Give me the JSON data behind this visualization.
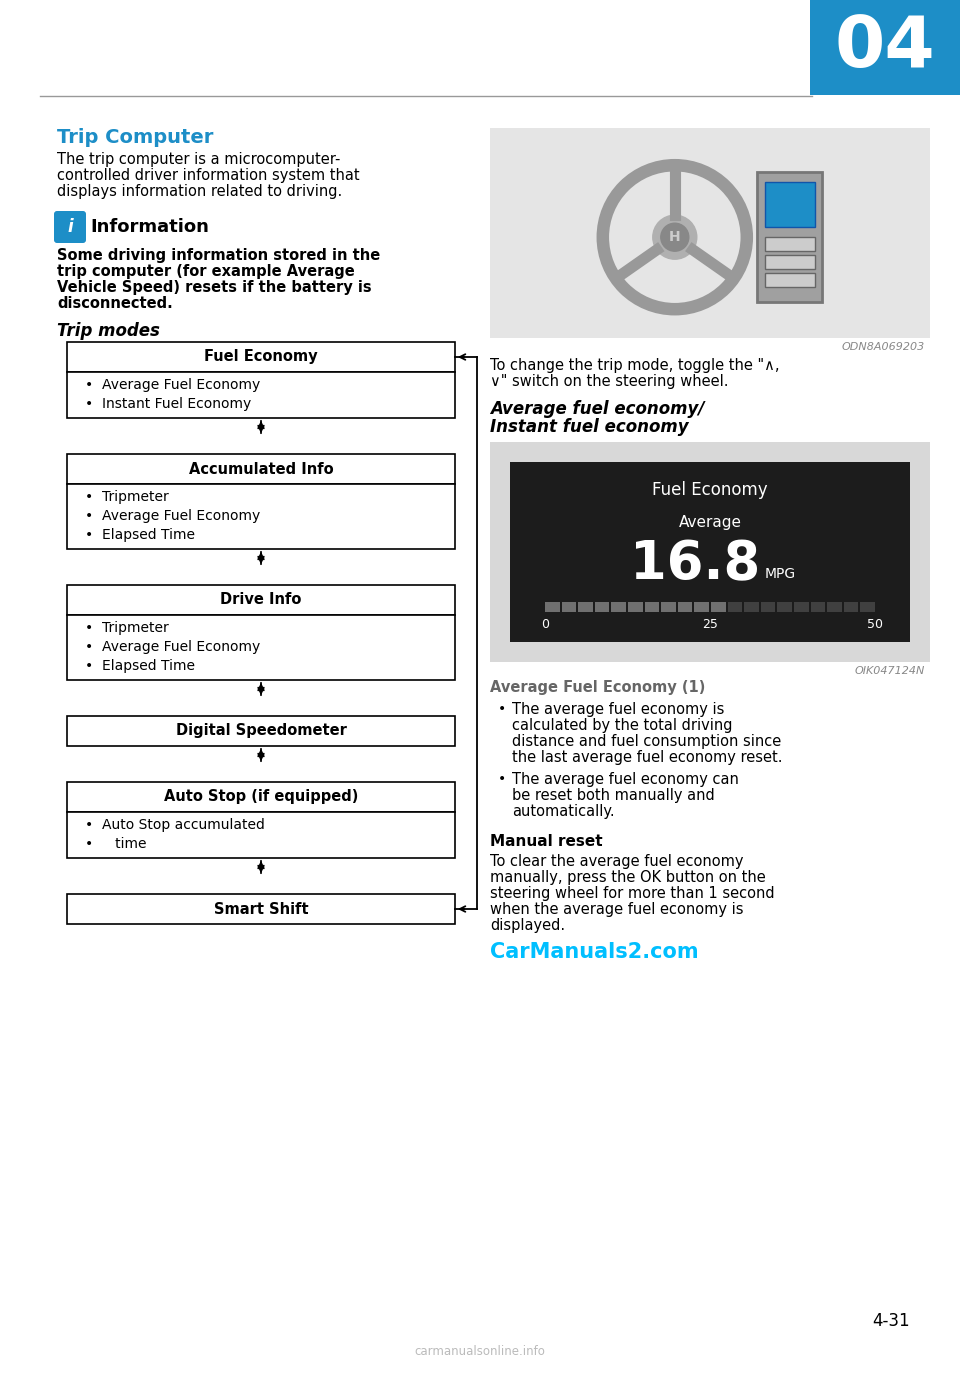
{
  "page_number": "4-31",
  "chapter_number": "04",
  "bg_color": "#ffffff",
  "header_blue": "#1d8ec7",
  "title": "Trip Computer",
  "title_color": "#1d8ec7",
  "body_text1": "The trip computer is a microcomputer-",
  "body_text2": "controlled driver information system that",
  "body_text3": "displays information related to driving.",
  "info_title": "Information",
  "info_line1": "Some driving information stored in the",
  "info_line2": "trip computer (for example Average",
  "info_line3": "Vehicle Speed) resets if the battery is",
  "info_line4": "disconnected.",
  "trip_modes_title": "Trip modes",
  "box_headers": [
    "Fuel Economy",
    "Accumulated Info",
    "Drive Info",
    "Digital Speedometer",
    "Auto Stop (if equipped)",
    "Smart Shift"
  ],
  "box_items": [
    [
      "Average Fuel Economy",
      "Instant Fuel Economy"
    ],
    [
      "Tripmeter",
      "Average Fuel Economy",
      "Elapsed Time"
    ],
    [
      "Tripmeter",
      "Average Fuel Economy",
      "Elapsed Time"
    ],
    [],
    [
      "Auto Stop accumulated",
      "time"
    ],
    []
  ],
  "auto_stop_item": "Auto Stop accumulated\ntime",
  "image_caption_steering": "ODN8A069203",
  "toggle_line1": "To change the trip mode, toggle the \"∧,",
  "toggle_line2": "∨\" switch on the steering wheel.",
  "avg_fuel_section_title1": "Average fuel economy/",
  "avg_fuel_section_title2": "Instant fuel economy",
  "fuel_display_title": "Fuel Economy",
  "fuel_display_label": "Average",
  "fuel_display_value": "16.8",
  "fuel_display_unit": "MPG",
  "fuel_gauge_ticks": [
    "0",
    "25",
    "50"
  ],
  "image_caption_fuel": "OIK047124N",
  "avg_fuel_economy_title": "Average Fuel Economy (1)",
  "bullet1_line1": "The average fuel economy is",
  "bullet1_line2": "calculated by the total driving",
  "bullet1_line3": "distance and fuel consumption since",
  "bullet1_line4": "the last average fuel economy reset.",
  "bullet2_line1": "The average fuel economy can",
  "bullet2_line2": "be reset both manually and",
  "bullet2_line3": "automatically.",
  "manual_reset_title": "Manual reset",
  "manual_reset_line1": "To clear the average fuel economy",
  "manual_reset_line2": "manually, press the OK button on the",
  "manual_reset_line3": "steering wheel for more than 1 second",
  "manual_reset_line4": "when the average fuel economy is",
  "manual_reset_line5": "displayed.",
  "watermark": "CarManuals2.com",
  "watermark_color": "#00bfff",
  "footer": "carmanualsonline.info",
  "footer_color": "#bbbbbb",
  "line_color": "#999999"
}
